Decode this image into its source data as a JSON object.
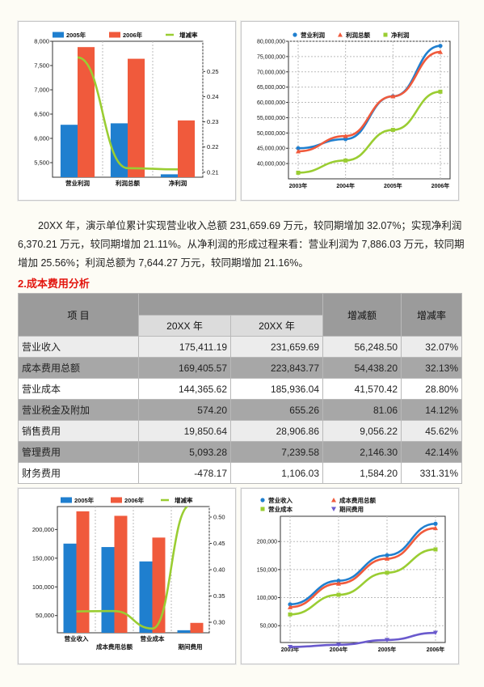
{
  "paragraph": "20XX 年，演示单位累计实现营业收入总额 231,659.69 万元，较同期增加 32.07%；实现净利润 6,370.21 万元，较同期增加 21.11%。从净利润的形成过程来看：营业利润为 7,886.03 万元，较同期增加 25.56%；利润总额为 7,644.27 万元，较同期增加 21.16%。",
  "section_title": "2.成本费用分析",
  "table": {
    "col_item": "项 目",
    "col_year1": "20XX 年",
    "col_year2": "20XX 年",
    "col_change": "增减额",
    "col_rate": "增减率",
    "rows": [
      {
        "item": "营业收入",
        "y1": "175,411.19",
        "y2": "231,659.69",
        "change": "56,248.50",
        "rate": "32.07%"
      },
      {
        "item": "成本费用总额",
        "y1": "169,405.57",
        "y2": "223,843.77",
        "change": "54,438.20",
        "rate": "32.13%"
      },
      {
        "item": "营业成本",
        "y1": "144,365.62",
        "y2": "185,936.04",
        "change": "41,570.42",
        "rate": "28.80%"
      },
      {
        "item": "营业税金及附加",
        "y1": "574.20",
        "y2": "655.26",
        "change": "81.06",
        "rate": "14.12%"
      },
      {
        "item": "销售费用",
        "y1": "19,850.64",
        "y2": "28,906.86",
        "change": "9,056.22",
        "rate": "45.62%"
      },
      {
        "item": "管理费用",
        "y1": "5,093.28",
        "y2": "7,239.58",
        "change": "2,146.30",
        "rate": "42.14%"
      },
      {
        "item": "财务费用",
        "y1": "-478.17",
        "y2": "1,106.03",
        "change": "1,584.20",
        "rate": "331.31%"
      }
    ]
  },
  "colors": {
    "blue": "#1f7fcf",
    "red": "#f05a3c",
    "green": "#9acd32",
    "purple": "#6a5acd",
    "section": "#e3150e"
  },
  "chart_data": [
    {
      "type": "bar",
      "categories": [
        "营业利润",
        "利润总额",
        "净利润"
      ],
      "series": [
        {
          "name": "2005年",
          "values": [
            6280,
            6310,
            5260
          ],
          "color": "#1f7fcf",
          "axis": "left"
        },
        {
          "name": "2006年",
          "values": [
            7880,
            7640,
            6370
          ],
          "color": "#f05a3c",
          "axis": "left"
        },
        {
          "name": "增减率",
          "values": [
            0.2556,
            0.2116,
            0.2111
          ],
          "color": "#9acd32",
          "axis": "right",
          "kind": "line"
        }
      ],
      "ylim": [
        5200,
        8000
      ],
      "yticks": [
        "5,500",
        "6,000",
        "6,500",
        "7,000",
        "7,500",
        "8,000"
      ],
      "y2lim": [
        0.208,
        0.262
      ],
      "y2ticks": [
        "0.21",
        "0.22",
        "0.23",
        "0.24",
        "0.25"
      ],
      "legend": "top"
    },
    {
      "type": "line",
      "categories": [
        "2003年",
        "2004年",
        "2005年",
        "2006年"
      ],
      "series": [
        {
          "name": "营业利润",
          "values": [
            45000000,
            48000000,
            62000000,
            78500000
          ],
          "color": "#1f7fcf",
          "marker": "circle"
        },
        {
          "name": "利润总额",
          "values": [
            44000000,
            49000000,
            62000000,
            76500000
          ],
          "color": "#f05a3c",
          "marker": "triangle"
        },
        {
          "name": "净利润",
          "values": [
            37000000,
            41000000,
            51000000,
            63500000
          ],
          "color": "#9acd32",
          "marker": "square"
        }
      ],
      "ylim": [
        35000000,
        80000000
      ],
      "yticks": [
        "40,000,000",
        "45,000,000",
        "50,000,000",
        "55,000,000",
        "60,000,000",
        "65,000,000",
        "70,000,000",
        "75,000,000",
        "80,000,000"
      ],
      "legend": "top"
    },
    {
      "type": "bar",
      "categories": [
        "营业收入",
        "成本费用总额",
        "营业成本",
        "期间费用"
      ],
      "series": [
        {
          "name": "2005年",
          "values": [
            175411,
            169406,
            144366,
            24466
          ],
          "color": "#1f7fcf",
          "axis": "left"
        },
        {
          "name": "2006年",
          "values": [
            231660,
            223844,
            185936,
            37252
          ],
          "color": "#f05a3c",
          "axis": "left"
        },
        {
          "name": "增减率",
          "values": [
            0.3207,
            0.3213,
            0.288,
            0.5226
          ],
          "color": "#9acd32",
          "axis": "right",
          "kind": "line"
        }
      ],
      "ylim": [
        20000,
        240000
      ],
      "yticks": [
        "50,000",
        "100,000",
        "150,000",
        "200,000"
      ],
      "y2lim": [
        0.28,
        0.52
      ],
      "y2ticks": [
        "0.30",
        "0.35",
        "0.40",
        "0.45",
        "0.50"
      ],
      "legend": "top"
    },
    {
      "type": "line",
      "categories": [
        "2003年",
        "2004年",
        "2005年",
        "2006年"
      ],
      "series": [
        {
          "name": "营业收入",
          "values": [
            88000,
            130000,
            175411,
            231660
          ],
          "color": "#1f7fcf",
          "marker": "circle"
        },
        {
          "name": "成本费用总额",
          "values": [
            83000,
            125000,
            169406,
            223844
          ],
          "color": "#f05a3c",
          "marker": "triangle"
        },
        {
          "name": "营业成本",
          "values": [
            70000,
            105000,
            144366,
            185936
          ],
          "color": "#9acd32",
          "marker": "square"
        },
        {
          "name": "期间费用",
          "values": [
            12000,
            16000,
            24466,
            37252
          ],
          "color": "#6a5acd",
          "marker": "triangle-down"
        }
      ],
      "ylim": [
        20000,
        245000
      ],
      "yticks": [
        "50,000",
        "100,000",
        "150,000",
        "200,000"
      ],
      "legend": "top"
    }
  ]
}
